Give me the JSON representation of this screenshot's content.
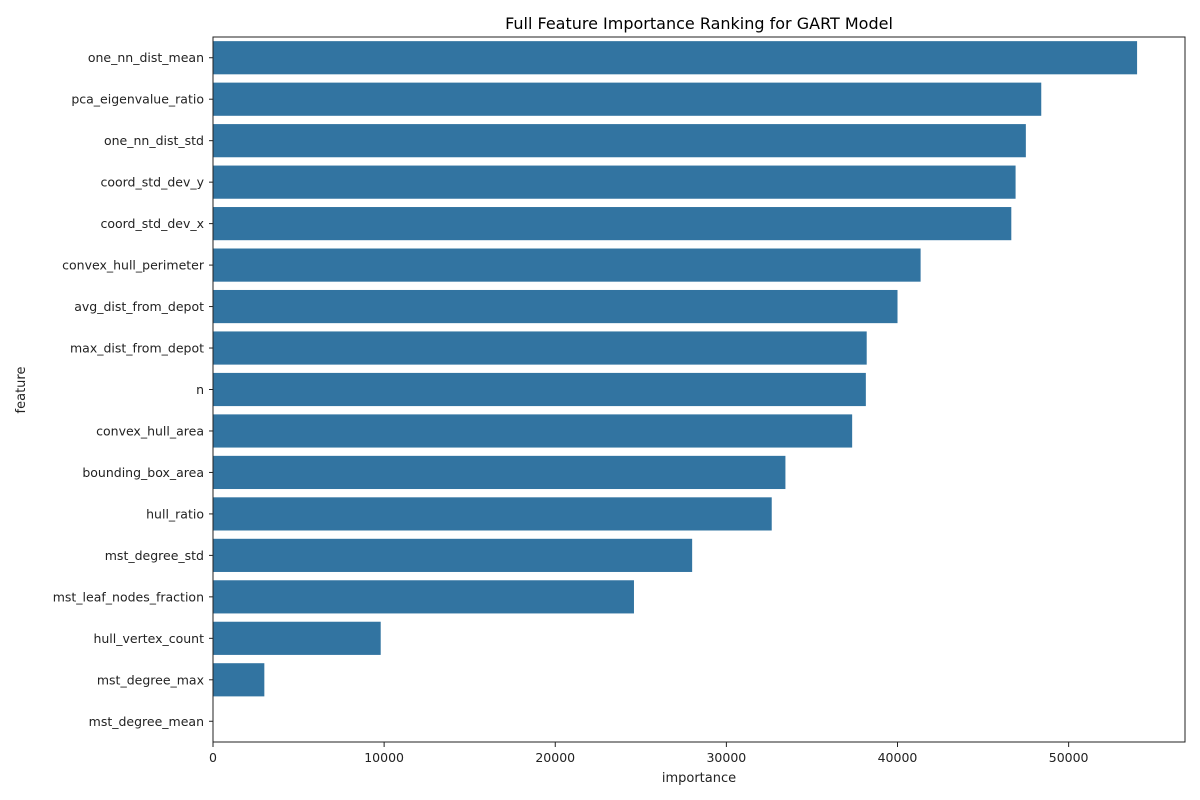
{
  "chart_data": {
    "type": "bar",
    "orientation": "horizontal",
    "title": "Full Feature Importance Ranking for GART Model",
    "xlabel": "importance",
    "ylabel": "feature",
    "xlim": [
      0,
      56800
    ],
    "xticks": [
      0,
      10000,
      20000,
      30000,
      40000,
      50000
    ],
    "grid": false,
    "bar_color": "#3274a1",
    "categories": [
      "one_nn_dist_mean",
      "pca_eigenvalue_ratio",
      "one_nn_dist_std",
      "coord_std_dev_y",
      "coord_std_dev_x",
      "convex_hull_perimeter",
      "avg_dist_from_depot",
      "max_dist_from_depot",
      "n",
      "convex_hull_area",
      "bounding_box_area",
      "hull_ratio",
      "mst_degree_std",
      "mst_leaf_nodes_fraction",
      "hull_vertex_count",
      "mst_degree_max",
      "mst_degree_mean"
    ],
    "values": [
      54000,
      48400,
      47500,
      46900,
      46650,
      41350,
      40000,
      38200,
      38150,
      37350,
      33450,
      32650,
      28000,
      24600,
      9800,
      3000,
      0
    ]
  }
}
